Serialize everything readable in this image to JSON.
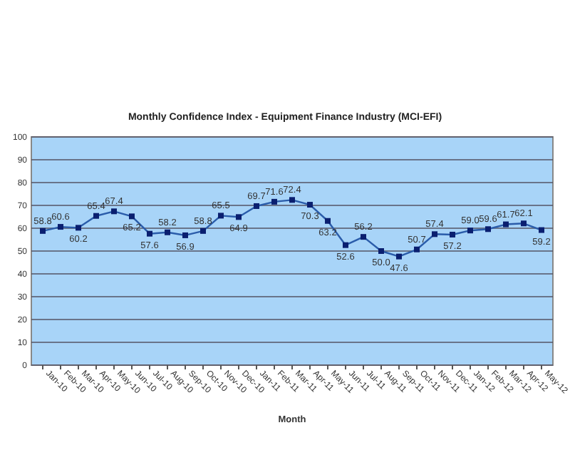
{
  "chart_data": {
    "type": "line",
    "title": "Monthly Confidence Index - Equipment Finance Industry (MCI-EFI)",
    "xlabel": "Month",
    "categories": [
      "Jan-10",
      "Feb-10",
      "Mar-10",
      "Apr-10",
      "May-10",
      "Jun-10",
      "Jul-10",
      "Aug-10",
      "Sep-10",
      "Oct-10",
      "Nov-10",
      "Dec-10",
      "Jan-11",
      "Feb-11",
      "Mar-11",
      "Apr-11",
      "May-11",
      "Jun-11",
      "Jul-11",
      "Aug-11",
      "Sep-11",
      "Oct-11",
      "Nov-11",
      "Dec-11",
      "Jan-12",
      "Feb-12",
      "Mar-12",
      "Apr-12",
      "May-12"
    ],
    "series": [
      {
        "color": "#2a5caa",
        "values": [
          58.8,
          60.6,
          60.2,
          65.4,
          67.4,
          65.2,
          57.6,
          58.2,
          56.9,
          58.8,
          65.5,
          64.9,
          69.7,
          71.6,
          72.4,
          70.3,
          63.2,
          52.6,
          56.2,
          50.0,
          47.6,
          50.7,
          57.4,
          57.2,
          59.0,
          59.6,
          61.7,
          62.1,
          59.2
        ],
        "value_labels": [
          "58.8",
          "60.6",
          "60.2",
          "65.4",
          "67.4",
          "65.2",
          "57.6",
          "58.2",
          "56.9",
          "58.8",
          "65.5",
          "64.9",
          "69.7",
          "71.6",
          "72.4",
          "70.3",
          "63.2",
          "52.6",
          "56.2",
          "50.0",
          "47.6",
          "50.7",
          "57.4",
          "57.2",
          "59.0",
          "59.6",
          "61.7",
          "62.1",
          "59.2"
        ]
      }
    ],
    "ylim": [
      0,
      100
    ],
    "yticks": [
      0,
      10,
      20,
      30,
      40,
      50,
      60,
      70,
      80,
      90,
      100
    ],
    "grid": "y",
    "marker": "square",
    "line_style": "solid"
  }
}
